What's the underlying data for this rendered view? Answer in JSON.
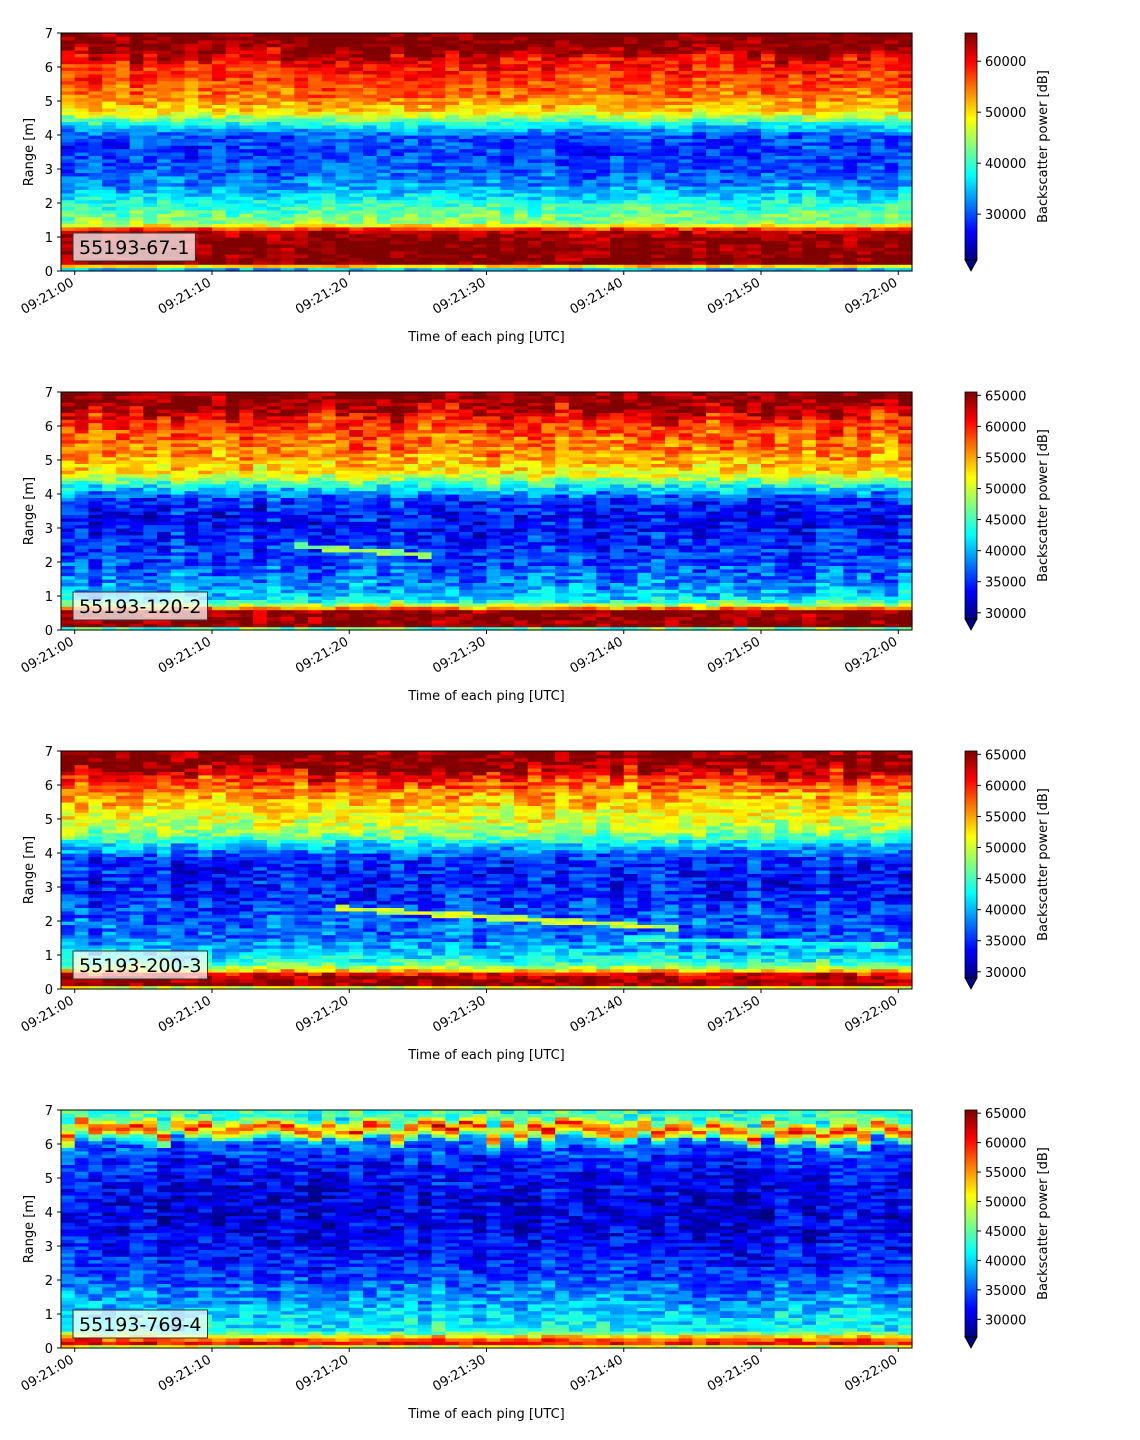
{
  "chart_data": [
    {
      "type": "heatmap",
      "panel_label": "55193-67-1",
      "xlabel": "Time of each ping [UTC]",
      "ylabel": "Range [m]",
      "colorbar_label": "Backscatter power [dB]",
      "colormap": "jet",
      "x_ticks": [
        "09:21:00",
        "09:21:10",
        "09:21:20",
        "09:21:30",
        "09:21:40",
        "09:21:50",
        "09:22:00"
      ],
      "xlim_seconds": [
        -1,
        61
      ],
      "y_ticks": [
        0,
        1,
        2,
        3,
        4,
        5,
        6,
        7
      ],
      "ylim": [
        0,
        7
      ],
      "colorbar_ticks": [
        30000,
        40000,
        50000,
        60000
      ],
      "clim": [
        21000,
        65535
      ],
      "profile": [
        [
          0,
          27000
        ],
        [
          0.25,
          65535
        ],
        [
          0.9,
          65535
        ],
        [
          1.2,
          62000
        ],
        [
          1.4,
          44000
        ],
        [
          1.7,
          42000
        ],
        [
          2.0,
          39000
        ],
        [
          2.5,
          33000
        ],
        [
          3.0,
          30000
        ],
        [
          3.5,
          29000
        ],
        [
          4.0,
          30000
        ],
        [
          4.3,
          37000
        ],
        [
          4.7,
          50000
        ],
        [
          5.2,
          55000
        ],
        [
          5.8,
          58000
        ],
        [
          6.3,
          60000
        ],
        [
          6.5,
          65535
        ],
        [
          7.0,
          65535
        ]
      ],
      "features": []
    },
    {
      "type": "heatmap",
      "panel_label": "55193-120-2",
      "xlabel": "Time of each ping [UTC]",
      "ylabel": "Range [m]",
      "colorbar_label": "Backscatter power [dB]",
      "colormap": "jet",
      "x_ticks": [
        "09:21:00",
        "09:21:10",
        "09:21:20",
        "09:21:30",
        "09:21:40",
        "09:21:50",
        "09:22:00"
      ],
      "xlim_seconds": [
        -1,
        61
      ],
      "y_ticks": [
        0,
        1,
        2,
        3,
        4,
        5,
        6,
        7
      ],
      "ylim": [
        0,
        7
      ],
      "colorbar_ticks": [
        30000,
        35000,
        40000,
        45000,
        50000,
        55000,
        60000,
        65000
      ],
      "clim": [
        29000,
        65535
      ],
      "profile": [
        [
          0,
          36000
        ],
        [
          0.15,
          65535
        ],
        [
          0.55,
          65535
        ],
        [
          0.7,
          52000
        ],
        [
          0.9,
          42000
        ],
        [
          1.3,
          39000
        ],
        [
          1.8,
          37000
        ],
        [
          2.5,
          35000
        ],
        [
          3.2,
          34000
        ],
        [
          3.8,
          35000
        ],
        [
          4.2,
          42000
        ],
        [
          4.6,
          52000
        ],
        [
          5.2,
          56000
        ],
        [
          5.8,
          58000
        ],
        [
          6.3,
          61000
        ],
        [
          6.6,
          65535
        ],
        [
          7.0,
          65535
        ]
      ],
      "features": [
        {
          "x0": 16,
          "x1": 26,
          "y0": 2.5,
          "y1": 2.2,
          "value": 48000
        }
      ]
    },
    {
      "type": "heatmap",
      "panel_label": "55193-200-3",
      "xlabel": "Time of each ping [UTC]",
      "ylabel": "Range [m]",
      "colorbar_label": "Backscatter power [dB]",
      "colormap": "jet",
      "x_ticks": [
        "09:21:00",
        "09:21:10",
        "09:21:20",
        "09:21:30",
        "09:21:40",
        "09:21:50",
        "09:22:00"
      ],
      "xlim_seconds": [
        -1,
        61
      ],
      "y_ticks": [
        0,
        1,
        2,
        3,
        4,
        5,
        6,
        7
      ],
      "ylim": [
        0,
        7
      ],
      "colorbar_ticks": [
        30000,
        35000,
        40000,
        45000,
        50000,
        55000,
        60000,
        65000
      ],
      "clim": [
        29000,
        65535
      ],
      "profile": [
        [
          0,
          40000
        ],
        [
          0.12,
          65535
        ],
        [
          0.42,
          63000
        ],
        [
          0.6,
          50000
        ],
        [
          0.8,
          44000
        ],
        [
          1.2,
          40000
        ],
        [
          1.5,
          37000
        ],
        [
          2.0,
          37000
        ],
        [
          2.6,
          35000
        ],
        [
          3.2,
          34000
        ],
        [
          3.8,
          35000
        ],
        [
          4.2,
          40000
        ],
        [
          4.6,
          48000
        ],
        [
          5.2,
          52000
        ],
        [
          5.8,
          55000
        ],
        [
          6.3,
          60000
        ],
        [
          6.6,
          65535
        ],
        [
          7.0,
          65535
        ]
      ],
      "features": [
        {
          "x0": 19,
          "x1": 44,
          "y0": 2.4,
          "y1": 1.8,
          "value": 50000
        },
        {
          "x0": 40,
          "x1": 60,
          "y0": 1.5,
          "y1": 1.3,
          "value": 44000
        }
      ]
    },
    {
      "type": "heatmap",
      "panel_label": "55193-769-4",
      "xlabel": "Time of each ping [UTC]",
      "ylabel": "Range [m]",
      "colorbar_label": "Backscatter power [dB]",
      "colormap": "jet",
      "x_ticks": [
        "09:21:00",
        "09:21:10",
        "09:21:20",
        "09:21:30",
        "09:21:40",
        "09:21:50",
        "09:22:00"
      ],
      "xlim_seconds": [
        -1,
        61
      ],
      "y_ticks": [
        0,
        1,
        2,
        3,
        4,
        5,
        6,
        7
      ],
      "ylim": [
        0,
        7
      ],
      "colorbar_ticks": [
        30000,
        35000,
        40000,
        45000,
        50000,
        55000,
        60000,
        65000
      ],
      "clim": [
        27000,
        65535
      ],
      "profile": [
        [
          0,
          38000
        ],
        [
          0.1,
          62000
        ],
        [
          0.3,
          56000
        ],
        [
          0.5,
          42000
        ],
        [
          1.0,
          40000
        ],
        [
          1.6,
          37000
        ],
        [
          2.5,
          33000
        ],
        [
          3.5,
          31000
        ],
        [
          4.5,
          31000
        ],
        [
          5.5,
          33000
        ],
        [
          6.0,
          36000
        ],
        [
          6.2,
          48000
        ],
        [
          6.4,
          60000
        ],
        [
          6.6,
          48000
        ],
        [
          6.8,
          42000
        ],
        [
          7.0,
          44000
        ]
      ],
      "features": []
    }
  ]
}
